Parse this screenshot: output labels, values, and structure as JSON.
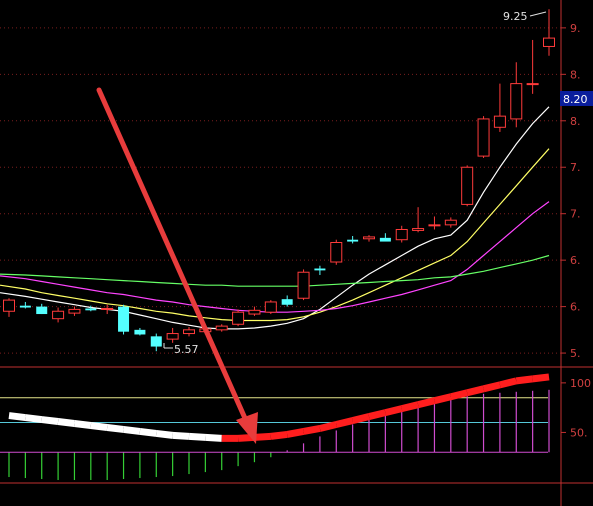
{
  "chart_data": {
    "type": "candlestick",
    "price_axis": {
      "tick_labels": [
        "9.",
        "8.",
        "8.",
        "7.",
        "7.",
        "6.",
        "6.",
        "5."
      ],
      "range": [
        5.4,
        9.35
      ]
    },
    "current_price": "8.20",
    "annotations": {
      "high": "9.25",
      "low": "5.57"
    },
    "candles": [
      {
        "o": 6.0,
        "h": 6.14,
        "l": 5.94,
        "c": 6.12
      },
      {
        "o": 6.06,
        "h": 6.1,
        "l": 6.03,
        "c": 6.04
      },
      {
        "o": 6.05,
        "h": 6.08,
        "l": 5.97,
        "c": 5.97
      },
      {
        "o": 5.92,
        "h": 6.04,
        "l": 5.88,
        "c": 6.0
      },
      {
        "o": 5.98,
        "h": 6.05,
        "l": 5.95,
        "c": 6.02
      },
      {
        "o": 6.03,
        "h": 6.06,
        "l": 6.0,
        "c": 6.01
      },
      {
        "o": 6.02,
        "h": 6.07,
        "l": 5.97,
        "c": 6.03
      },
      {
        "o": 6.05,
        "h": 6.07,
        "l": 5.75,
        "c": 5.78
      },
      {
        "o": 5.8,
        "h": 5.82,
        "l": 5.74,
        "c": 5.75
      },
      {
        "o": 5.73,
        "h": 5.76,
        "l": 5.57,
        "c": 5.62
      },
      {
        "o": 5.7,
        "h": 5.82,
        "l": 5.66,
        "c": 5.76
      },
      {
        "o": 5.76,
        "h": 5.83,
        "l": 5.73,
        "c": 5.8
      },
      {
        "o": 5.78,
        "h": 5.85,
        "l": 5.75,
        "c": 5.81
      },
      {
        "o": 5.8,
        "h": 5.86,
        "l": 5.78,
        "c": 5.84
      },
      {
        "o": 5.86,
        "h": 6.02,
        "l": 5.84,
        "c": 5.99
      },
      {
        "o": 5.97,
        "h": 6.05,
        "l": 5.95,
        "c": 6.01
      },
      {
        "o": 5.99,
        "h": 6.12,
        "l": 5.97,
        "c": 6.1
      },
      {
        "o": 6.13,
        "h": 6.17,
        "l": 6.05,
        "c": 6.07
      },
      {
        "o": 6.14,
        "h": 6.45,
        "l": 6.12,
        "c": 6.42
      },
      {
        "o": 6.46,
        "h": 6.49,
        "l": 6.39,
        "c": 6.44
      },
      {
        "o": 6.53,
        "h": 6.77,
        "l": 6.5,
        "c": 6.74
      },
      {
        "o": 6.77,
        "h": 6.81,
        "l": 6.73,
        "c": 6.75
      },
      {
        "o": 6.78,
        "h": 6.82,
        "l": 6.75,
        "c": 6.8
      },
      {
        "o": 6.79,
        "h": 6.84,
        "l": 6.76,
        "c": 6.75
      },
      {
        "o": 6.77,
        "h": 6.92,
        "l": 6.74,
        "c": 6.88
      },
      {
        "o": 6.87,
        "h": 7.12,
        "l": 6.85,
        "c": 6.89
      },
      {
        "o": 6.92,
        "h": 7.02,
        "l": 6.88,
        "c": 6.93
      },
      {
        "o": 6.93,
        "h": 7.01,
        "l": 6.9,
        "c": 6.98
      },
      {
        "o": 7.15,
        "h": 7.57,
        "l": 7.13,
        "c": 7.55
      },
      {
        "o": 7.67,
        "h": 8.1,
        "l": 7.65,
        "c": 8.07
      },
      {
        "o": 7.98,
        "h": 8.45,
        "l": 7.93,
        "c": 8.1
      },
      {
        "o": 8.07,
        "h": 8.68,
        "l": 7.98,
        "c": 8.45
      },
      {
        "o": 8.45,
        "h": 8.92,
        "l": 8.34,
        "c": 8.45
      },
      {
        "o": 8.85,
        "h": 9.25,
        "l": 8.75,
        "c": 8.94
      }
    ],
    "ma_lines": [
      {
        "color": "#ffffff",
        "values": [
          6.2,
          6.16,
          6.13,
          6.1,
          6.07,
          6.04,
          6.02,
          6.0,
          5.96,
          5.92,
          5.88,
          5.85,
          5.82,
          5.81,
          5.81,
          5.82,
          5.84,
          5.87,
          5.92,
          6.02,
          6.15,
          6.28,
          6.4,
          6.5,
          6.6,
          6.7,
          6.78,
          6.82,
          6.98,
          7.28,
          7.55,
          7.8,
          8.02,
          8.2
        ]
      },
      {
        "color": "#ffff66",
        "values": [
          6.28,
          6.24,
          6.2,
          6.17,
          6.14,
          6.11,
          6.08,
          6.06,
          6.03,
          6.0,
          5.98,
          5.95,
          5.93,
          5.91,
          5.9,
          5.9,
          5.9,
          5.91,
          5.94,
          5.99,
          6.05,
          6.12,
          6.2,
          6.28,
          6.36,
          6.44,
          6.52,
          6.6,
          6.75,
          6.95,
          7.15,
          7.35,
          7.55,
          7.75
        ]
      },
      {
        "color": "#ff44ff",
        "values": [
          6.38,
          6.35,
          6.32,
          6.29,
          6.26,
          6.23,
          6.2,
          6.18,
          6.15,
          6.12,
          6.1,
          6.07,
          6.05,
          6.03,
          6.01,
          6.0,
          5.99,
          5.99,
          6.0,
          6.01,
          6.03,
          6.06,
          6.1,
          6.14,
          6.18,
          6.23,
          6.28,
          6.33,
          6.45,
          6.6,
          6.75,
          6.9,
          7.05,
          7.18
        ]
      },
      {
        "color": "#66ff66",
        "values": [
          6.4,
          6.39,
          6.38,
          6.37,
          6.36,
          6.35,
          6.34,
          6.33,
          6.32,
          6.31,
          6.3,
          6.29,
          6.28,
          6.28,
          6.27,
          6.27,
          6.27,
          6.27,
          6.27,
          6.28,
          6.29,
          6.3,
          6.31,
          6.32,
          6.33,
          6.34,
          6.36,
          6.37,
          6.4,
          6.43,
          6.47,
          6.51,
          6.55,
          6.6
        ]
      }
    ],
    "indicator": {
      "tick_labels": [
        "100",
        "50."
      ],
      "range": [
        0,
        115
      ],
      "levels": [
        85,
        60
      ],
      "oscillator_values": [
        35,
        33,
        31,
        29,
        27,
        25,
        23,
        21,
        19,
        17,
        15,
        14,
        13,
        12,
        12,
        13,
        14,
        16,
        19,
        22,
        26,
        30,
        34,
        38,
        42,
        46,
        50,
        54,
        58,
        62,
        66,
        70,
        72,
        74
      ],
      "bars": [
        -25,
        -26,
        -27,
        -28,
        -28,
        -28,
        -28,
        -27,
        -26,
        -25,
        -24,
        -22,
        -20,
        -18,
        -14,
        -10,
        -5,
        2,
        9,
        16,
        22,
        28,
        33,
        38,
        42,
        46,
        50,
        54,
        57,
        59,
        60,
        61,
        62,
        63
      ]
    }
  }
}
